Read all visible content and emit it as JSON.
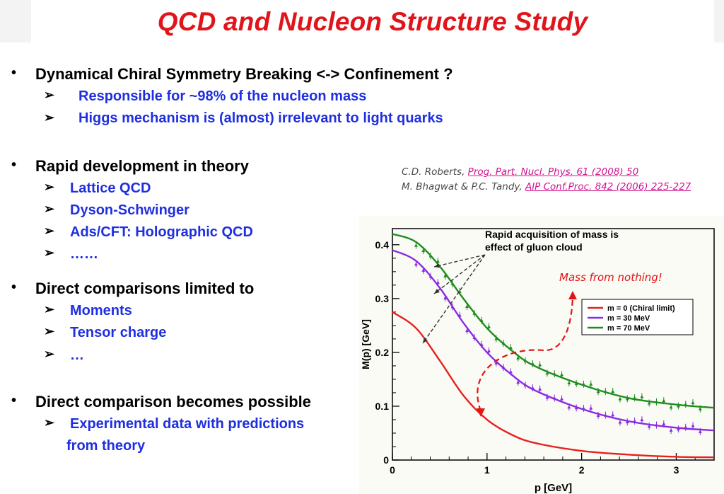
{
  "title": "QCD and Nucleon Structure Study",
  "sections": [
    {
      "bullet": "Dynamical Chiral Symmetry Breaking  <->  Confinement ?",
      "items": [
        "Responsible for  ~98% of the nucleon mass",
        "Higgs mechanism is (almost) irrelevant to light quarks"
      ]
    },
    {
      "bullet": "Rapid development in theory",
      "items": [
        "Lattice QCD",
        "Dyson-Schwinger",
        "Ads/CFT: Holographic QCD",
        "……"
      ]
    },
    {
      "bullet": "Direct comparisons limited to",
      "items": [
        "Moments",
        "Tensor charge",
        " …"
      ]
    },
    {
      "bullet": "Direct comparison becomes possible",
      "items": [
        "Experimental data with predictions",
        "from theory"
      ]
    }
  ],
  "bullet_glyph": "•",
  "arrow_glyph": "➢",
  "references": [
    {
      "authors": "C.D. Roberts, ",
      "link": "Prog. Part. Nucl. Phys. 61 (2008) 50"
    },
    {
      "authors": "M. Bhagwat & P.C. Tandy, ",
      "link": "AIP Conf.Proc. 842 (2006) 225-227"
    }
  ],
  "annotation": "Mass from nothing!",
  "chart_data": {
    "type": "line",
    "xlabel": "p [GeV]",
    "ylabel": "M(p) [GeV]",
    "xlim": [
      0,
      3.4
    ],
    "ylim": [
      0,
      0.43
    ],
    "xticks": [
      "0",
      "1",
      "2",
      "3"
    ],
    "yticks": [
      "0",
      "0.1",
      "0.2",
      "0.3",
      "0.4"
    ],
    "callout": "Rapid acquisition of mass is effect of gluon cloud",
    "colors": {
      "m0": "#e8201c",
      "m30": "#8a2be2",
      "m70": "#1e8c1e"
    },
    "series": [
      {
        "name": "m = 0 (Chiral limit)",
        "x": [
          0,
          0.25,
          0.5,
          0.75,
          1.0,
          1.25,
          1.5,
          2.0,
          2.5,
          3.0,
          3.4
        ],
        "y": [
          0.275,
          0.245,
          0.185,
          0.12,
          0.075,
          0.048,
          0.032,
          0.017,
          0.01,
          0.006,
          0.005
        ]
      },
      {
        "name": "m = 30 MeV",
        "x": [
          0,
          0.25,
          0.5,
          0.75,
          1.0,
          1.25,
          1.5,
          2.0,
          2.5,
          3.0,
          3.4
        ],
        "y": [
          0.39,
          0.37,
          0.32,
          0.255,
          0.2,
          0.16,
          0.13,
          0.095,
          0.072,
          0.06,
          0.055
        ]
      },
      {
        "name": "m = 70 MeV",
        "x": [
          0,
          0.25,
          0.5,
          0.75,
          1.0,
          1.25,
          1.5,
          2.0,
          2.5,
          3.0,
          3.4
        ],
        "y": [
          0.42,
          0.405,
          0.36,
          0.3,
          0.245,
          0.205,
          0.175,
          0.14,
          0.115,
          0.103,
          0.097
        ]
      }
    ]
  }
}
